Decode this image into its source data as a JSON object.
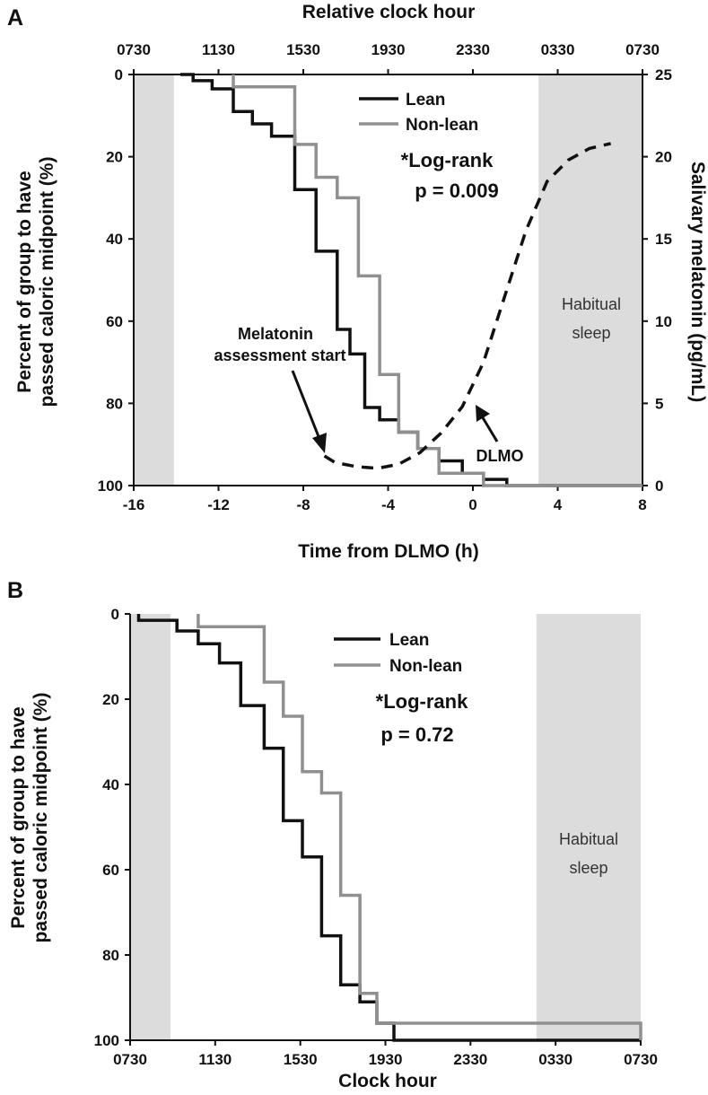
{
  "chart_data": [
    {
      "panel": "A",
      "type": "line",
      "step": true,
      "title": "",
      "xlabel": "Time from DLMO (h)",
      "x2label": "Relative clock hour",
      "ylabel": "Percent of group to have passed caloric midpoint (%)",
      "ylabel_lines": [
        "Percent of group to have",
        "passed caloric midpoint (%)"
      ],
      "y2label": "Salivary melatonin (pg/mL)",
      "xlim": [
        -16,
        8
      ],
      "ylim": [
        0,
        100
      ],
      "y_inverted": true,
      "y2lim": [
        0,
        25
      ],
      "xticks": [
        -16,
        -12,
        -8,
        -4,
        0,
        4,
        8
      ],
      "xtick_labels": [
        "-16",
        "-12",
        "-8",
        "-4",
        "0",
        "4",
        "8"
      ],
      "x2ticks": [
        -16,
        -12,
        -8,
        -4,
        0,
        4,
        8
      ],
      "x2tick_labels": [
        "0730",
        "1130",
        "1530",
        "1930",
        "2330",
        "0330",
        "0730"
      ],
      "yticks": [
        0,
        20,
        40,
        60,
        80,
        100
      ],
      "ytick_labels": [
        "0",
        "20",
        "40",
        "60",
        "80",
        "100"
      ],
      "y2ticks": [
        0,
        5,
        10,
        15,
        20,
        25
      ],
      "y2tick_labels": [
        "0",
        "5",
        "10",
        "15",
        "20",
        "25"
      ],
      "shaded_regions": [
        {
          "x": [
            -16,
            -14.1
          ],
          "label": ""
        },
        {
          "x": [
            3.1,
            8
          ],
          "label_lines": [
            "Habitual",
            "sleep"
          ]
        }
      ],
      "series": [
        {
          "name": "Lean",
          "color": "#111111",
          "x": [
            -13.8,
            -13.2,
            -12.3,
            -11.3,
            -10.4,
            -9.5,
            -8.4,
            -7.4,
            -6.4,
            -5.8,
            -5.1,
            -4.4,
            -3.5,
            -2.6,
            -1.6,
            -0.5,
            0.5,
            1.6,
            8
          ],
          "y": [
            0,
            1.5,
            3.5,
            9,
            12,
            15,
            28,
            43,
            62,
            68,
            81,
            84,
            87,
            91,
            94,
            97,
            98.5,
            100,
            100
          ]
        },
        {
          "name": "Non-lean",
          "color": "#909090",
          "x": [
            -11.3,
            -8.4,
            -7.4,
            -6.4,
            -5.4,
            -4.4,
            -3.5,
            -2.6,
            -1.6,
            0.5,
            8
          ],
          "y": [
            3,
            17,
            25,
            30,
            49,
            73,
            87,
            91,
            97,
            100,
            100
          ]
        },
        {
          "name": "Melatonin",
          "axis": "y2",
          "color": "#111111",
          "dash": true,
          "x": [
            -7,
            -6.5,
            -5.5,
            -4.5,
            -3.5,
            -2.5,
            -1.5,
            -0.5,
            0.5,
            1.5,
            2.5,
            3.5,
            4.5,
            5.5,
            6.5
          ],
          "y": [
            1.8,
            1.4,
            1.15,
            1.05,
            1.3,
            2.0,
            3.2,
            4.8,
            7.5,
            11.5,
            15.5,
            18.5,
            19.8,
            20.5,
            20.8
          ]
        }
      ],
      "annotations": [
        {
          "lines": [
            "*Log-rank",
            "p = 0.009"
          ]
        },
        {
          "lines": [
            "Melatonin",
            "assessment start"
          ],
          "arrow_to": [
            -6.9,
            94
          ]
        },
        {
          "lines": [
            "DLMO"
          ],
          "arrow_to": [
            0.5,
            80
          ]
        }
      ],
      "legend_position": "top-center"
    },
    {
      "panel": "B",
      "type": "line",
      "step": true,
      "title": "",
      "xlabel": "Clock hour",
      "ylabel": "Percent of group to have passed caloric midpoint (%)",
      "ylabel_lines": [
        "Percent of group to have",
        "passed caloric midpoint (%)"
      ],
      "xlim": [
        0,
        24
      ],
      "ylim": [
        0,
        100
      ],
      "y_inverted": true,
      "xticks": [
        0,
        4,
        8,
        12,
        16,
        20,
        24
      ],
      "xtick_labels": [
        "0730",
        "1130",
        "1530",
        "1930",
        "2330",
        "0330",
        "0730"
      ],
      "yticks": [
        0,
        20,
        40,
        60,
        80,
        100
      ],
      "ytick_labels": [
        "0",
        "20",
        "40",
        "60",
        "80",
        "100"
      ],
      "shaded_regions": [
        {
          "x": [
            0,
            1.9
          ],
          "label": ""
        },
        {
          "x": [
            19.1,
            24
          ],
          "label_lines": [
            "Habitual",
            "sleep"
          ]
        }
      ],
      "series": [
        {
          "name": "Lean",
          "color": "#111111",
          "x": [
            0.4,
            2.2,
            3.2,
            4.2,
            5.2,
            6.3,
            7.2,
            8.1,
            9.0,
            9.9,
            10.8,
            11.6,
            12.4,
            13.3,
            24
          ],
          "y": [
            1.5,
            4,
            7,
            11.5,
            21.5,
            31.5,
            48.5,
            57,
            75.5,
            87,
            91,
            96,
            100,
            100,
            100
          ]
        },
        {
          "name": "Non-lean",
          "color": "#909090",
          "x": [
            3.2,
            6.3,
            7.2,
            8.1,
            9.0,
            9.9,
            10.8,
            11.6,
            24
          ],
          "y": [
            3,
            16,
            24,
            37,
            42,
            66,
            89,
            96,
            100
          ]
        }
      ],
      "annotations": [
        {
          "lines": [
            "*Log-rank",
            "p = 0.72"
          ]
        }
      ],
      "legend_position": "top-center"
    }
  ]
}
